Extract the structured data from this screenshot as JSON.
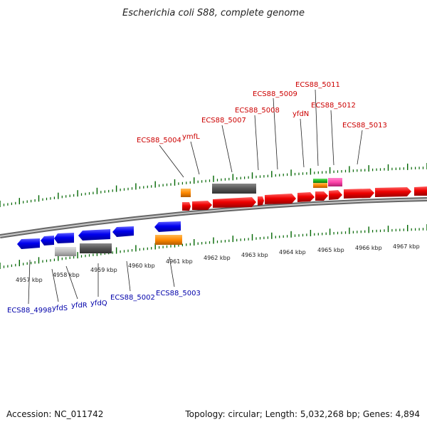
{
  "title": "Escherichia coli S88, complete genome",
  "footer": {
    "accession": "Accession: NC_011742",
    "summary": "Topology: circular; Length: 5,032,268 bp; Genes: 4,894"
  },
  "colors": {
    "forward_gene": "#ee0000",
    "reverse_gene": "#0000ee",
    "orange_feature": "#ff8800",
    "dark_gray_feature": "#555555",
    "light_gray_feature": "#bbbbbb",
    "pink_feature": "#ff44aa",
    "green_feature": "#22bb22",
    "tick": "#006600",
    "backbone": "#888888"
  },
  "kbp_labels": [
    "4957 kbp",
    "4958 kbp",
    "4959 kbp",
    "4960 kbp",
    "4961 kbp",
    "4962 kbp",
    "4963 kbp",
    "4964 kbp",
    "4965 kbp",
    "4966 kbp",
    "4967 kbp"
  ],
  "top_labels": [
    "ECS88_5004",
    "ymfL",
    "ECS88_5007",
    "ECS88_5008",
    "ECS88_5009",
    "ECS88_5011",
    "yfdN",
    "ECS88_5012",
    "ECS88_5013"
  ],
  "bottom_labels": [
    "ECS88_4998",
    "yfdS",
    "yfdR",
    "yfdQ",
    "ECS88_5002",
    "ECS88_5003"
  ]
}
